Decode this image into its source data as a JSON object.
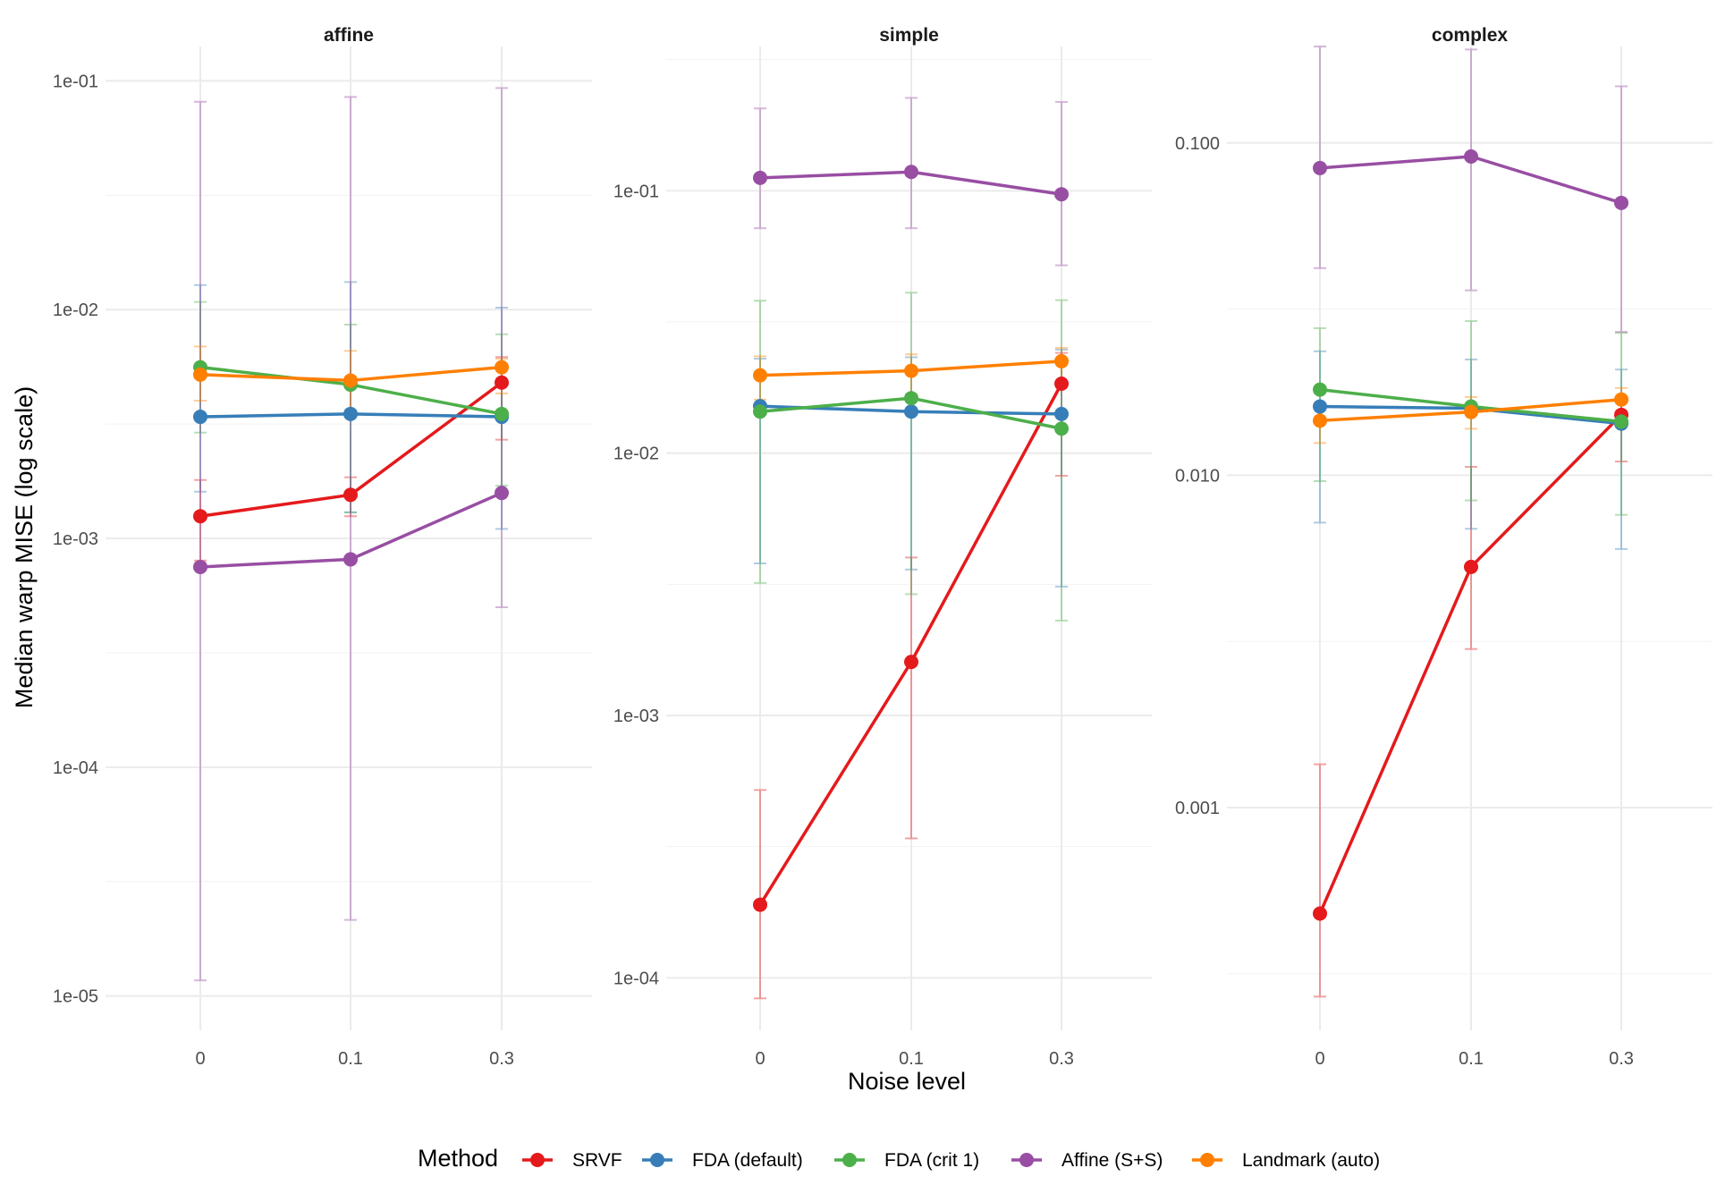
{
  "chart_data": {
    "type": "line",
    "ylabel": "Median warp MISE (log scale)",
    "xlabel": "Noise level",
    "x_categories": [
      "0",
      "0.1",
      "0.3"
    ],
    "legend": {
      "title": "Method",
      "position": "bottom",
      "entries": [
        {
          "name": "SRVF",
          "color": "#e41a1c"
        },
        {
          "name": "FDA (default)",
          "color": "#377eb8"
        },
        {
          "name": "FDA (crit 1)",
          "color": "#4daf4a"
        },
        {
          "name": "Affine (S+S)",
          "color": "#984ea3"
        },
        {
          "name": "Landmark (auto)",
          "color": "#ff7f00"
        }
      ]
    },
    "panels": [
      {
        "title": "affine",
        "y_scale": "log",
        "y_limits_log10": [
          -5.15,
          -0.85
        ],
        "y_ticks": [
          {
            "v": 0.1,
            "label": "1e-01"
          },
          {
            "v": 0.01,
            "label": "1e-02"
          },
          {
            "v": 0.001,
            "label": "1e-03"
          },
          {
            "v": 0.0001,
            "label": "1e-04"
          },
          {
            "v": 1e-05,
            "label": "1e-05"
          }
        ],
        "series": [
          {
            "name": "SRVF",
            "values": [
              0.00125,
              0.00155,
              0.0048
            ],
            "low": [
              0.0008,
              0.00125,
              0.0027
            ],
            "high": [
              0.0018,
              0.00185,
              0.0062
            ]
          },
          {
            "name": "FDA (default)",
            "values": [
              0.0034,
              0.0035,
              0.0034
            ],
            "low": [
              0.0016,
              0.0013,
              0.0011
            ],
            "high": [
              0.0128,
              0.0132,
              0.0102
            ]
          },
          {
            "name": "FDA (crit 1)",
            "values": [
              0.0056,
              0.0047,
              0.0035
            ],
            "low": [
              0.0029,
              0.0013,
              0.0017
            ],
            "high": [
              0.0108,
              0.0086,
              0.0078
            ]
          },
          {
            "name": "Affine (S+S)",
            "values": [
              0.00075,
              0.00081,
              0.00158
            ],
            "low": [
              1.17e-05,
              2.15e-05,
              0.0005
            ],
            "high": [
              0.081,
              0.085,
              0.093
            ]
          },
          {
            "name": "Landmark (auto)",
            "values": [
              0.0052,
              0.0049,
              0.0056
            ],
            "low": [
              0.004,
              0.0036,
              0.0043
            ],
            "high": [
              0.0069,
              0.0066,
              0.0061
            ]
          }
        ]
      },
      {
        "title": "simple",
        "y_scale": "log",
        "y_limits_log10": [
          -4.2,
          -0.45
        ],
        "y_ticks": [
          {
            "v": 0.1,
            "label": "1e-01"
          },
          {
            "v": 0.01,
            "label": "1e-02"
          },
          {
            "v": 0.001,
            "label": "1e-03"
          },
          {
            "v": 0.0001,
            "label": "1e-04"
          }
        ],
        "series": [
          {
            "name": "SRVF",
            "values": [
              0.00019,
              0.0016,
              0.0184
            ],
            "low": [
              8.35e-05,
              0.00034,
              0.0082
            ],
            "high": [
              0.00052,
              0.004,
              0.0241
            ]
          },
          {
            "name": "FDA (default)",
            "values": [
              0.0151,
              0.0144,
              0.0141
            ],
            "low": [
              0.0038,
              0.0036,
              0.0031
            ],
            "high": [
              0.0229,
              0.0232,
              0.0248
            ]
          },
          {
            "name": "FDA (crit 1)",
            "values": [
              0.0144,
              0.0162,
              0.0124
            ],
            "low": [
              0.0032,
              0.0029,
              0.0023
            ],
            "high": [
              0.0381,
              0.0409,
              0.0383
            ]
          },
          {
            "name": "Affine (S+S)",
            "values": [
              0.112,
              0.118,
              0.097
            ],
            "low": [
              0.072,
              0.072,
              0.052
            ],
            "high": [
              0.206,
              0.226,
              0.218
            ]
          },
          {
            "name": "Landmark (auto)",
            "values": [
              0.0198,
              0.0206,
              0.0224
            ],
            "low": [
              0.016,
              0.0168,
              0.0185
            ],
            "high": [
              0.0234,
              0.0238,
              0.0252
            ]
          }
        ]
      },
      {
        "title": "complex",
        "y_scale": "log",
        "y_limits_log10": [
          -3.67,
          -0.71
        ],
        "y_ticks": [
          {
            "v": 0.1,
            "label": "0.100"
          },
          {
            "v": 0.01,
            "label": "0.010"
          },
          {
            "v": 0.001,
            "label": "0.001"
          }
        ],
        "series": [
          {
            "name": "SRVF",
            "values": [
              0.00048,
              0.0053,
              0.0152
            ],
            "low": [
              0.00027,
              0.003,
              0.011
            ],
            "high": [
              0.00135,
              0.0106,
              0.0168
            ]
          },
          {
            "name": "FDA (default)",
            "values": [
              0.0161,
              0.0159,
              0.0143
            ],
            "low": [
              0.0072,
              0.0069,
              0.006
            ],
            "high": [
              0.0236,
              0.0223,
              0.0208
            ]
          },
          {
            "name": "FDA (crit 1)",
            "values": [
              0.0181,
              0.0161,
              0.0145
            ],
            "low": [
              0.0096,
              0.0084,
              0.0076
            ],
            "high": [
              0.0277,
              0.0291,
              0.0268
            ]
          },
          {
            "name": "Affine (S+S)",
            "values": [
              0.084,
              0.091,
              0.066
            ],
            "low": [
              0.042,
              0.036,
              0.027
            ],
            "high": [
              0.195,
              0.191,
              0.148
            ]
          },
          {
            "name": "Landmark (auto)",
            "values": [
              0.0146,
              0.0155,
              0.0169
            ],
            "low": [
              0.0125,
              0.0138,
              0.0151
            ],
            "high": [
              0.0165,
              0.0172,
              0.0183
            ]
          }
        ]
      }
    ]
  }
}
